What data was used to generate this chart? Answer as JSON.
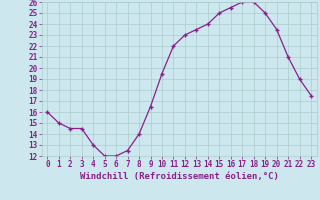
{
  "x": [
    0,
    1,
    2,
    3,
    4,
    5,
    6,
    7,
    8,
    9,
    10,
    11,
    12,
    13,
    14,
    15,
    16,
    17,
    18,
    19,
    20,
    21,
    22,
    23
  ],
  "y": [
    16.0,
    15.0,
    14.5,
    14.5,
    13.0,
    12.0,
    12.0,
    12.5,
    14.0,
    16.5,
    19.5,
    22.0,
    23.0,
    23.5,
    24.0,
    25.0,
    25.5,
    26.0,
    26.0,
    25.0,
    23.5,
    21.0,
    19.0,
    17.5
  ],
  "xlabel": "Windchill (Refroidissement éolien,°C)",
  "ylim": [
    12,
    26
  ],
  "xlim": [
    -0.5,
    23.5
  ],
  "yticks": [
    12,
    13,
    14,
    15,
    16,
    17,
    18,
    19,
    20,
    21,
    22,
    23,
    24,
    25,
    26
  ],
  "xticks": [
    0,
    1,
    2,
    3,
    4,
    5,
    6,
    7,
    8,
    9,
    10,
    11,
    12,
    13,
    14,
    15,
    16,
    17,
    18,
    19,
    20,
    21,
    22,
    23
  ],
  "line_color": "#882288",
  "marker": "+",
  "bg_color": "#cce8ee",
  "grid_color": "#aacccc",
  "tick_label_color": "#882288",
  "axis_label_color": "#882288",
  "tick_fontsize": 5.5,
  "xlabel_fontsize": 6.5
}
